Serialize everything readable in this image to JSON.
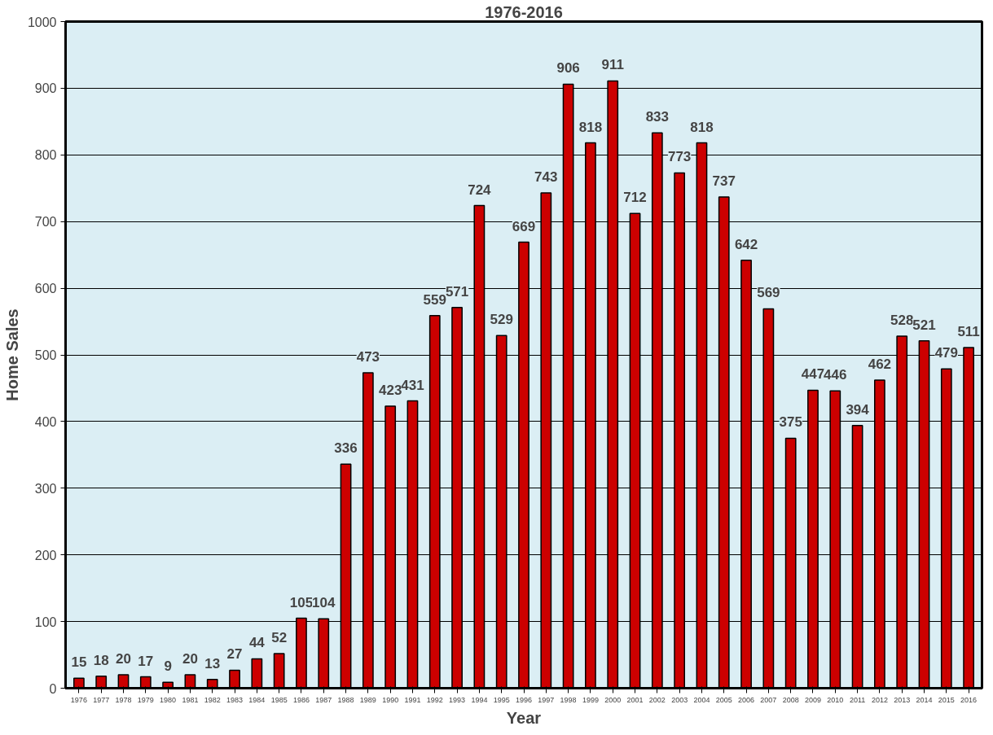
{
  "chart_data": {
    "type": "bar",
    "title": "1976-2016",
    "xlabel": "Year",
    "ylabel": "Home Sales",
    "categories": [
      "1976",
      "1977",
      "1978",
      "1979",
      "1980",
      "1981",
      "1982",
      "1983",
      "1984",
      "1985",
      "1986",
      "1987",
      "1988",
      "1989",
      "1990",
      "1991",
      "1992",
      "1993",
      "1994",
      "1995",
      "1996",
      "1997",
      "1998",
      "1999",
      "2000",
      "2001",
      "2002",
      "2003",
      "2004",
      "2005",
      "2006",
      "2007",
      "2008",
      "2009",
      "2010",
      "2011",
      "2012",
      "2013",
      "2014",
      "2015",
      "2016"
    ],
    "values": [
      15,
      18,
      20,
      17,
      9,
      20,
      13,
      27,
      44,
      52,
      105,
      104,
      336,
      473,
      423,
      431,
      559,
      571,
      724,
      529,
      669,
      743,
      906,
      818,
      911,
      712,
      833,
      773,
      818,
      737,
      642,
      569,
      375,
      447,
      446,
      394,
      462,
      528,
      521,
      479,
      511
    ],
    "color": "#cc0000",
    "ylim": [
      0,
      1000
    ],
    "yticks": [
      0,
      100,
      200,
      300,
      400,
      500,
      600,
      700,
      800,
      900,
      1000
    ],
    "grid": "y",
    "data_labels": true
  }
}
